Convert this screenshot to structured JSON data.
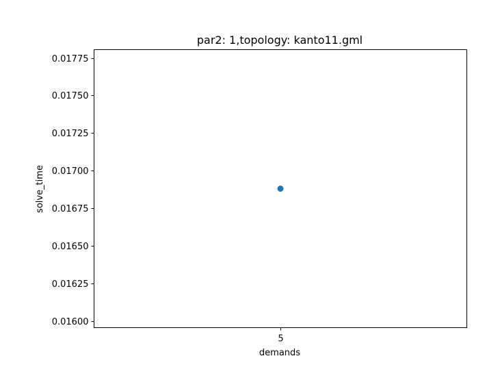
{
  "chart_data": {
    "type": "scatter",
    "title": "par2: 1,topology: kanto11.gml",
    "xlabel": "demands",
    "ylabel": "solve_time",
    "x_categories": [
      "5"
    ],
    "points": [
      {
        "x": "5",
        "y": 0.01688
      }
    ],
    "ylim": [
      0.015955,
      0.017805
    ],
    "yticks": [
      0.016,
      0.01625,
      0.0165,
      0.01675,
      0.017,
      0.01725,
      0.0175,
      0.01775
    ],
    "ytick_labels": [
      "0.01600",
      "0.01625",
      "0.01650",
      "0.01675",
      "0.01700",
      "0.01725",
      "0.01750",
      "0.01775"
    ],
    "grid": false,
    "marker_color": "#1f77b4"
  }
}
